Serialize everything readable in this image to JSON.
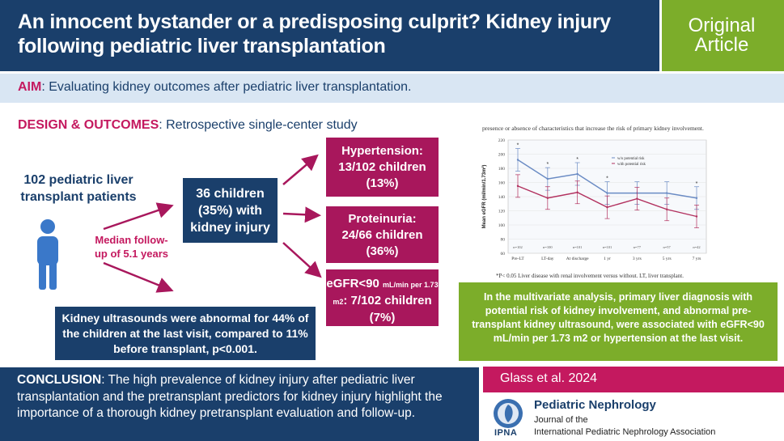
{
  "header": {
    "title": "An innocent bystander or a predisposing culprit? Kidney injury following pediatric liver transplantation",
    "badge": "Original Article"
  },
  "aim": {
    "label": "AIM",
    "text": ": Evaluating kidney outcomes after pediatric liver transplantation."
  },
  "design": {
    "label": "DESIGN & OUTCOMES",
    "text": ": Retrospective single-center study"
  },
  "flow": {
    "patients": "102 pediatric liver transplant patients",
    "median": "Median follow-up of 5.1 years",
    "injury": "36 children (35%) with kidney injury",
    "hypertension": {
      "line1": "Hypertension:",
      "line2": "13/102 children",
      "line3": "(13%)"
    },
    "proteinuria": {
      "line1": "Proteinuria:",
      "line2": "24/66 children",
      "line3": "(36%)"
    },
    "egfr": {
      "prefix": "eGFR<90 ",
      "unit": "mL/min per 1.73 m2",
      "suffix": ": 7/102 children (7%)"
    },
    "ultrasound": "Kidney ultrasounds were abnormal for 44% of the children at the last visit, compared to 11% before transplant, p<0.001."
  },
  "figure": {
    "caption": "presence or absence of characteristics that increase the risk of primary kidney involvement.",
    "note": "*P< 0.05 Liver disease with renal involvement versus without. LT, liver transplant."
  },
  "chart_data": {
    "type": "line",
    "title": "",
    "xlabel": "",
    "ylabel": "Mean eGFR (ml/min/1.73m²)",
    "ylim": [
      60,
      220
    ],
    "yticks": [
      60,
      80,
      100,
      120,
      140,
      160,
      180,
      200,
      220
    ],
    "categories": [
      "Pre-LT",
      "LT-day",
      "At discharge",
      "1 yr",
      "3 yrs",
      "5 yrs",
      "7 yrs"
    ],
    "n_labels": [
      "n=102",
      "n=100",
      "n=101",
      "n=101",
      "n=77",
      "n=57",
      "n=42"
    ],
    "significance": [
      "*",
      "*",
      "*",
      "*",
      "",
      "",
      "*"
    ],
    "legend": [
      "w/o potential risk",
      "with potential risk"
    ],
    "series": [
      {
        "name": "w/o potential risk",
        "values": [
          192,
          165,
          172,
          145,
          145,
          145,
          138
        ],
        "color": "#6a8bc4"
      },
      {
        "name": "with potential risk",
        "values": [
          155,
          138,
          146,
          125,
          137,
          122,
          112
        ],
        "color": "#b2305e"
      }
    ]
  },
  "multivariate": "In the multivariate analysis, primary liver diagnosis with potential risk of kidney involvement, and abnormal pre-transplant kidney ultrasound, were associated with eGFR<90 mL/min per 1.73 m2 or hypertension at the last visit.",
  "conclusion": {
    "label": "CONCLUSION",
    "text": ": The high prevalence of kidney injury after pediatric liver transplantation and the pretransplant predictors for kidney injury highlight the importance of a thorough kidney pretransplant evaluation and follow-up."
  },
  "citation": "Glass et al. 2024",
  "journal": {
    "logo_text": "IPNA",
    "name": "Pediatric Nephrology",
    "sub1": "Journal of the",
    "sub2": "International Pediatric Nephrology Association"
  },
  "colors": {
    "navy": "#1a3f6b",
    "magenta": "#a8175c",
    "green": "#7cad2a",
    "light_blue": "#d9e6f3"
  }
}
